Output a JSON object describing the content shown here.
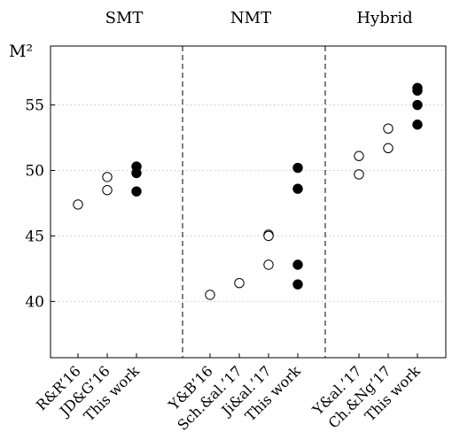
{
  "chart_data": {
    "type": "scatter",
    "ylabel": "M²",
    "ylim": [
      35.7,
      59.5
    ],
    "yticks": [
      40,
      45,
      50,
      55
    ],
    "grid": "horizontal-dotted",
    "groups": [
      {
        "label": "SMT",
        "categories": [
          "R&R’16",
          "JD&G’16",
          "This work"
        ]
      },
      {
        "label": "NMT",
        "categories": [
          "Y&B’16",
          "Sch.&al.’17",
          "Ji&al.’17",
          "This work"
        ]
      },
      {
        "label": "Hybrid",
        "categories": [
          "Y&al.’17",
          "Ch.&Ng’17",
          "This work"
        ]
      }
    ],
    "series": [
      {
        "marker": "open-circle",
        "points": [
          {
            "group": 0,
            "category": "R&R’16",
            "values": [
              47.4
            ]
          },
          {
            "group": 0,
            "category": "JD&G’16",
            "values": [
              49.5,
              48.5
            ]
          },
          {
            "group": 1,
            "category": "Y&B’16",
            "values": [
              40.5
            ]
          },
          {
            "group": 1,
            "category": "Sch.&al.’17",
            "values": [
              41.4
            ]
          },
          {
            "group": 1,
            "category": "Ji&al.’17",
            "values": [
              45.1,
              45.0,
              42.8
            ]
          },
          {
            "group": 2,
            "category": "Y&al.’17",
            "values": [
              51.1,
              49.7
            ]
          },
          {
            "group": 2,
            "category": "Ch.&Ng’17",
            "values": [
              53.2,
              51.7
            ]
          }
        ]
      },
      {
        "marker": "filled-circle",
        "points": [
          {
            "group": 0,
            "category": "This work",
            "values": [
              50.3,
              49.8,
              48.4
            ]
          },
          {
            "group": 1,
            "category": "This work",
            "values": [
              50.2,
              48.6,
              42.8,
              41.3
            ]
          },
          {
            "group": 2,
            "category": "This work",
            "values": [
              56.3,
              56.1,
              55.0,
              53.5
            ]
          }
        ]
      }
    ]
  }
}
